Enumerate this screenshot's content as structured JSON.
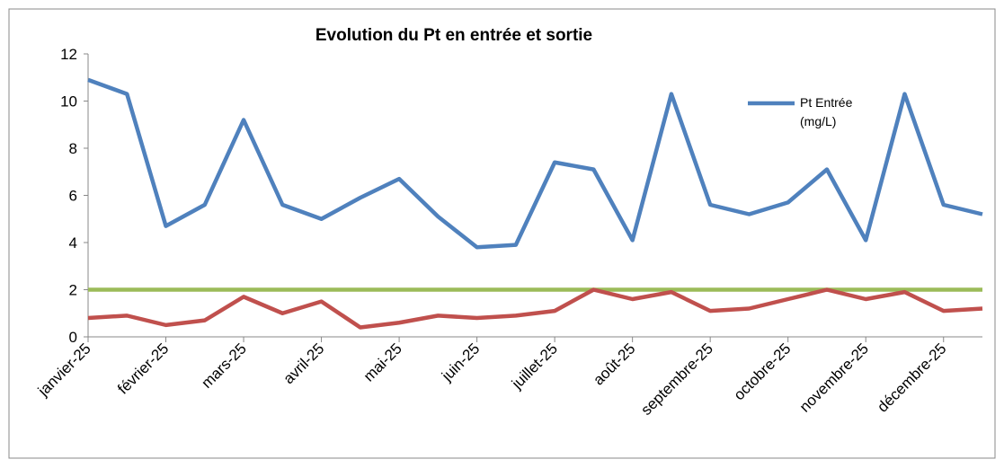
{
  "chart_data": {
    "type": "line",
    "title": "Evolution du Pt en entrée et sortie",
    "categories": [
      "janvier-25",
      null,
      "février-25",
      null,
      "mars-25",
      null,
      "avril-25",
      null,
      "mai-25",
      null,
      "juin-25",
      null,
      "juillet-25",
      null,
      "août-25",
      null,
      "septembre-25",
      null,
      "octobre-25",
      null,
      "novembre-25",
      null,
      "décembre-25",
      null
    ],
    "series": [
      {
        "name": "Pt Entrée (mg/L)",
        "color": "#4f81bd",
        "values": [
          10.9,
          10.3,
          4.7,
          5.6,
          9.2,
          5.6,
          5.0,
          5.9,
          6.7,
          5.1,
          3.8,
          3.9,
          7.4,
          7.1,
          4.1,
          10.3,
          5.6,
          5.2,
          5.7,
          7.1,
          4.1,
          10.3,
          5.6,
          5.2
        ]
      },
      {
        "color": "#c0504d",
        "values": [
          0.8,
          0.9,
          0.5,
          0.7,
          1.7,
          1.0,
          1.5,
          0.4,
          0.6,
          0.9,
          0.8,
          0.9,
          1.1,
          2.0,
          1.6,
          1.9,
          1.1,
          1.2,
          1.6,
          2.0,
          1.6,
          1.9,
          1.1,
          1.2
        ]
      },
      {
        "color": "#9bbb59",
        "values": [
          2,
          2,
          2,
          2,
          2,
          2,
          2,
          2,
          2,
          2,
          2,
          2,
          2,
          2,
          2,
          2,
          2,
          2,
          2,
          2,
          2,
          2,
          2,
          2
        ]
      }
    ],
    "ylim": [
      0,
      12
    ],
    "yticks": [
      0,
      2,
      4,
      6,
      8,
      10,
      12
    ],
    "grid": false
  }
}
